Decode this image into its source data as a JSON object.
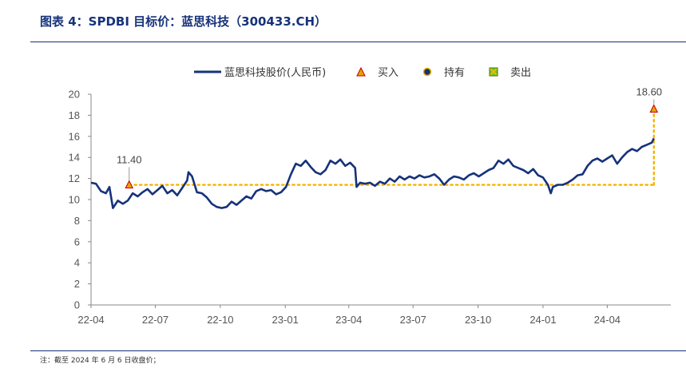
{
  "figure": {
    "title": "图表 4：SPDBI 目标价：蓝思科技（300433.CH）",
    "footnote": "注：截至 2024 年 6 月 6 日收盘价；"
  },
  "legend": {
    "items": [
      {
        "label": "蓝思科技股价(人民币)",
        "symbol": "line",
        "color": "#16327a"
      },
      {
        "label": "买入",
        "symbol": "triangle",
        "color": "#e8a200"
      },
      {
        "label": "持有",
        "symbol": "circle",
        "color": "#16327a"
      },
      {
        "label": "卖出",
        "symbol": "square-x",
        "color": "#7cbf2a"
      }
    ]
  },
  "chart_data": {
    "type": "line",
    "title": "",
    "xlabel": "",
    "ylabel": "",
    "ylim": [
      0,
      20
    ],
    "yticks": [
      0,
      2,
      4,
      6,
      8,
      10,
      12,
      14,
      16,
      18,
      20
    ],
    "xlim": [
      "2022-04-01",
      "2024-06-30"
    ],
    "xticks": [
      {
        "label": "22-04",
        "date": "2022-04-01"
      },
      {
        "label": "22-07",
        "date": "2022-07-01"
      },
      {
        "label": "22-10",
        "date": "2022-10-01"
      },
      {
        "label": "23-01",
        "date": "2023-01-01"
      },
      {
        "label": "23-04",
        "date": "2023-04-01"
      },
      {
        "label": "23-07",
        "date": "2023-07-01"
      },
      {
        "label": "23-10",
        "date": "2023-10-01"
      },
      {
        "label": "24-01",
        "date": "2024-01-01"
      },
      {
        "label": "24-04",
        "date": "2024-04-01"
      }
    ],
    "grid": false,
    "legend_position": "top",
    "colors": {
      "line": "#16327a",
      "buy": "#e8a200",
      "target": "#f5b400"
    },
    "series": [
      {
        "name": "蓝思科技股价(人民币)",
        "points": [
          [
            "2022-04-01",
            11.6
          ],
          [
            "2022-04-08",
            11.5
          ],
          [
            "2022-04-15",
            10.8
          ],
          [
            "2022-04-22",
            10.6
          ],
          [
            "2022-04-27",
            11.2
          ],
          [
            "2022-05-02",
            9.2
          ],
          [
            "2022-05-09",
            9.9
          ],
          [
            "2022-05-16",
            9.6
          ],
          [
            "2022-05-23",
            9.9
          ],
          [
            "2022-05-30",
            10.6
          ],
          [
            "2022-06-06",
            10.3
          ],
          [
            "2022-06-13",
            10.7
          ],
          [
            "2022-06-20",
            11.0
          ],
          [
            "2022-06-27",
            10.5
          ],
          [
            "2022-07-04",
            10.9
          ],
          [
            "2022-07-11",
            11.3
          ],
          [
            "2022-07-18",
            10.6
          ],
          [
            "2022-07-25",
            10.9
          ],
          [
            "2022-08-01",
            10.4
          ],
          [
            "2022-08-08",
            11.1
          ],
          [
            "2022-08-15",
            11.8
          ],
          [
            "2022-08-17",
            12.6
          ],
          [
            "2022-08-22",
            12.2
          ],
          [
            "2022-08-29",
            10.7
          ],
          [
            "2022-09-05",
            10.6
          ],
          [
            "2022-09-12",
            10.2
          ],
          [
            "2022-09-19",
            9.6
          ],
          [
            "2022-09-26",
            9.3
          ],
          [
            "2022-10-03",
            9.2
          ],
          [
            "2022-10-10",
            9.3
          ],
          [
            "2022-10-17",
            9.8
          ],
          [
            "2022-10-24",
            9.5
          ],
          [
            "2022-10-31",
            9.9
          ],
          [
            "2022-11-07",
            10.3
          ],
          [
            "2022-11-14",
            10.1
          ],
          [
            "2022-11-21",
            10.8
          ],
          [
            "2022-11-28",
            11.0
          ],
          [
            "2022-12-05",
            10.8
          ],
          [
            "2022-12-12",
            10.9
          ],
          [
            "2022-12-19",
            10.5
          ],
          [
            "2022-12-26",
            10.7
          ],
          [
            "2023-01-02",
            11.2
          ],
          [
            "2023-01-09",
            12.4
          ],
          [
            "2023-01-16",
            13.4
          ],
          [
            "2023-01-23",
            13.2
          ],
          [
            "2023-01-30",
            13.7
          ],
          [
            "2023-02-06",
            13.1
          ],
          [
            "2023-02-13",
            12.6
          ],
          [
            "2023-02-20",
            12.4
          ],
          [
            "2023-02-27",
            12.8
          ],
          [
            "2023-03-06",
            13.7
          ],
          [
            "2023-03-13",
            13.4
          ],
          [
            "2023-03-20",
            13.8
          ],
          [
            "2023-03-27",
            13.2
          ],
          [
            "2023-04-03",
            13.5
          ],
          [
            "2023-04-10",
            13.0
          ],
          [
            "2023-04-12",
            11.2
          ],
          [
            "2023-04-17",
            11.6
          ],
          [
            "2023-04-24",
            11.5
          ],
          [
            "2023-05-01",
            11.6
          ],
          [
            "2023-05-08",
            11.3
          ],
          [
            "2023-05-15",
            11.7
          ],
          [
            "2023-05-22",
            11.5
          ],
          [
            "2023-05-29",
            12.0
          ],
          [
            "2023-06-05",
            11.7
          ],
          [
            "2023-06-12",
            12.2
          ],
          [
            "2023-06-19",
            11.9
          ],
          [
            "2023-06-26",
            12.2
          ],
          [
            "2023-07-03",
            12.0
          ],
          [
            "2023-07-10",
            12.3
          ],
          [
            "2023-07-17",
            12.1
          ],
          [
            "2023-07-24",
            12.2
          ],
          [
            "2023-07-31",
            12.4
          ],
          [
            "2023-08-07",
            12.0
          ],
          [
            "2023-08-14",
            11.4
          ],
          [
            "2023-08-21",
            11.9
          ],
          [
            "2023-08-28",
            12.2
          ],
          [
            "2023-09-04",
            12.1
          ],
          [
            "2023-09-11",
            11.9
          ],
          [
            "2023-09-18",
            12.3
          ],
          [
            "2023-09-25",
            12.5
          ],
          [
            "2023-10-02",
            12.2
          ],
          [
            "2023-10-09",
            12.5
          ],
          [
            "2023-10-16",
            12.8
          ],
          [
            "2023-10-23",
            13.0
          ],
          [
            "2023-10-30",
            13.7
          ],
          [
            "2023-11-06",
            13.4
          ],
          [
            "2023-11-13",
            13.8
          ],
          [
            "2023-11-20",
            13.2
          ],
          [
            "2023-11-27",
            13.0
          ],
          [
            "2023-12-04",
            12.8
          ],
          [
            "2023-12-11",
            12.5
          ],
          [
            "2023-12-18",
            12.9
          ],
          [
            "2023-12-25",
            12.3
          ],
          [
            "2024-01-01",
            12.1
          ],
          [
            "2024-01-08",
            11.4
          ],
          [
            "2024-01-12",
            10.6
          ],
          [
            "2024-01-15",
            11.2
          ],
          [
            "2024-01-22",
            11.4
          ],
          [
            "2024-01-29",
            11.4
          ],
          [
            "2024-02-05",
            11.6
          ],
          [
            "2024-02-12",
            11.9
          ],
          [
            "2024-02-19",
            12.3
          ],
          [
            "2024-02-26",
            12.4
          ],
          [
            "2024-03-04",
            13.2
          ],
          [
            "2024-03-11",
            13.7
          ],
          [
            "2024-03-18",
            13.9
          ],
          [
            "2024-03-25",
            13.6
          ],
          [
            "2024-04-01",
            13.9
          ],
          [
            "2024-04-08",
            14.2
          ],
          [
            "2024-04-15",
            13.4
          ],
          [
            "2024-04-22",
            14.0
          ],
          [
            "2024-04-29",
            14.5
          ],
          [
            "2024-05-06",
            14.8
          ],
          [
            "2024-05-13",
            14.6
          ],
          [
            "2024-05-20",
            15.0
          ],
          [
            "2024-05-27",
            15.2
          ],
          [
            "2024-06-03",
            15.4
          ],
          [
            "2024-06-06",
            15.8
          ]
        ]
      }
    ],
    "ratings": [
      {
        "rating": "买入",
        "date": "2022-05-25",
        "target": 11.4,
        "label": "11.40"
      },
      {
        "rating": "买入",
        "date": "2024-06-06",
        "target": 18.6,
        "label": "18.60"
      }
    ]
  }
}
